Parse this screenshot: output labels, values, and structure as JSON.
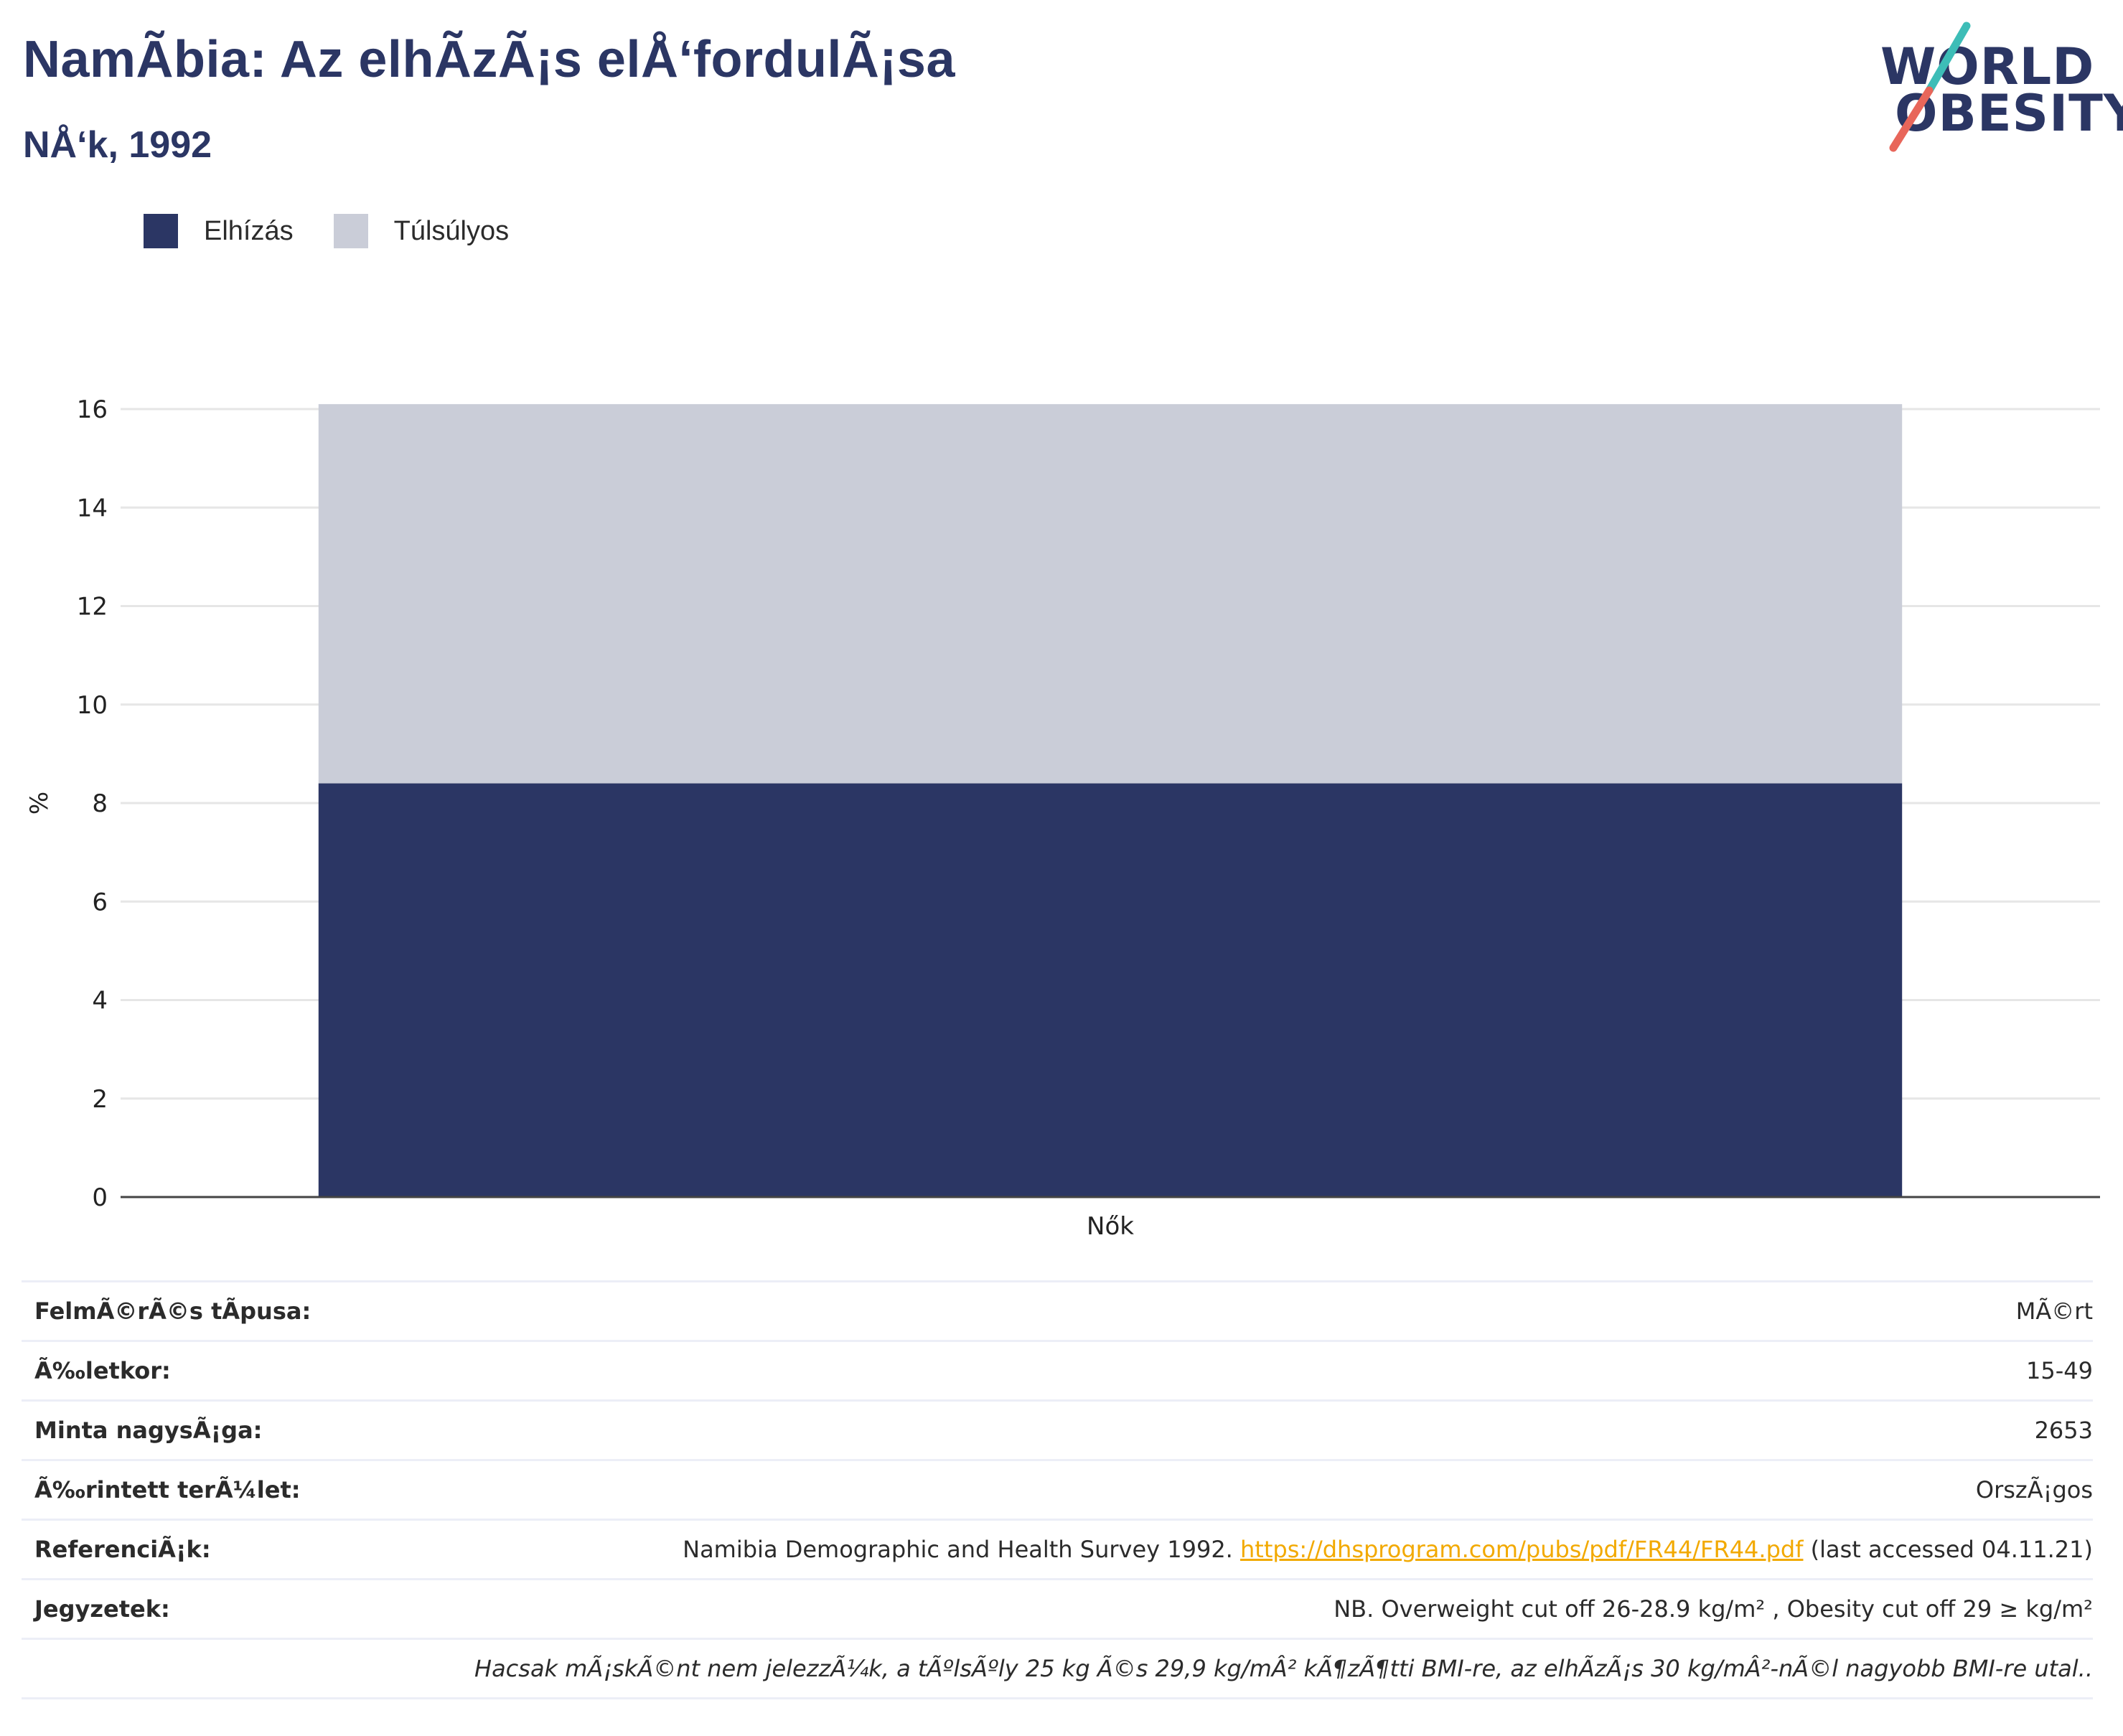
{
  "header": {
    "title": "NamÃbia: Az elhÃzÃ¡s elÅ‘fordulÃ¡sa",
    "subtitle": "NÅ‘k, 1992"
  },
  "logo": {
    "line1": "WORLD",
    "line2": "OBESITY",
    "colors": {
      "text": "#2b3664",
      "slash_top": "#3dbdb7",
      "slash_bottom": "#e8665a"
    }
  },
  "legend": [
    {
      "label": "Elhízás",
      "color": "#2b3664"
    },
    {
      "label": "Túlsúlyos",
      "color": "#cacdd8"
    }
  ],
  "chart_data": {
    "type": "bar",
    "stacked": true,
    "categories": [
      "Nők"
    ],
    "series": [
      {
        "name": "Elhízás",
        "values": [
          8.4
        ],
        "color": "#2b3664"
      },
      {
        "name": "Túlsúlyos",
        "values": [
          7.7
        ],
        "color": "#cacdd8"
      }
    ],
    "ylabel": "%",
    "ylim": [
      0,
      16
    ],
    "yticks": [
      0,
      2,
      4,
      6,
      8,
      10,
      12,
      14,
      16
    ],
    "grid": true,
    "legend_position": "top-left"
  },
  "info_table": {
    "rows": [
      {
        "label": "FelmÃ©rÃ©s tÃpusa:",
        "value": "MÃ©rt"
      },
      {
        "label": "Ã‰letkor:",
        "value": "15-49"
      },
      {
        "label": "Minta nagysÃ¡ga:",
        "value": "2653"
      },
      {
        "label": "Ã‰rintett terÃ¼let:",
        "value": "OrszÃ¡gos"
      }
    ],
    "reference": {
      "label": "ReferenciÃ¡k:",
      "text_before": "Namibia Demographic and Health Survey 1992. ",
      "link": "https://dhsprogram.com/pubs/pdf/FR44/FR44.pdf",
      "text_after": " (last accessed 04.11.21)"
    },
    "notes": {
      "label": "Jegyzetek:",
      "value": "NB. Overweight cut off 26-28.9 kg/m² , Obesity cut off 29 ≥ kg/m²"
    },
    "footnote": "Hacsak mÃ¡skÃ©nt nem jelezzÃ¼k, a tÃºlsÃºly 25 kg Ã©s 29,9 kg/mÂ² kÃ¶zÃ¶tti BMI-re, az elhÃzÃ¡s 30 kg/mÂ²-nÃ©l nagyobb BMI-re utal.."
  }
}
